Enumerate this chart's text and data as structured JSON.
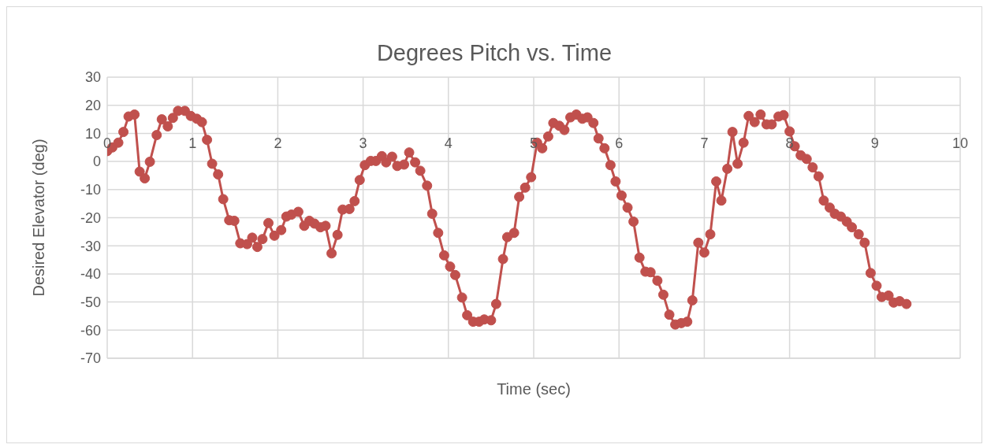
{
  "chart_data": {
    "type": "line",
    "title": "Degrees Pitch vs. Time",
    "xlabel": "Time (sec)",
    "ylabel": "Desired Elevator (deg)",
    "x": [
      0,
      0.06,
      0.13,
      0.19,
      0.25,
      0.32,
      0.38,
      0.44,
      0.5,
      0.58,
      0.64,
      0.71,
      0.77,
      0.83,
      0.91,
      0.98,
      1.05,
      1.11,
      1.17,
      1.23,
      1.3,
      1.36,
      1.43,
      1.49,
      1.56,
      1.64,
      1.7,
      1.76,
      1.82,
      1.89,
      1.96,
      2.04,
      2.1,
      2.16,
      2.24,
      2.31,
      2.37,
      2.43,
      2.5,
      2.56,
      2.63,
      2.7,
      2.76,
      2.84,
      2.9,
      2.96,
      3.02,
      3.09,
      3.15,
      3.22,
      3.27,
      3.34,
      3.4,
      3.48,
      3.54,
      3.61,
      3.67,
      3.75,
      3.81,
      3.88,
      3.95,
      4.02,
      4.08,
      4.16,
      4.22,
      4.29,
      4.36,
      4.42,
      4.5,
      4.56,
      4.64,
      4.69,
      4.77,
      4.83,
      4.9,
      4.97,
      5.04,
      5.1,
      5.17,
      5.23,
      5.3,
      5.36,
      5.43,
      5.5,
      5.57,
      5.63,
      5.7,
      5.76,
      5.83,
      5.9,
      5.96,
      6.03,
      6.1,
      6.17,
      6.24,
      6.31,
      6.37,
      6.45,
      6.52,
      6.59,
      6.66,
      6.73,
      6.8,
      6.86,
      6.93,
      7,
      7.07,
      7.14,
      7.2,
      7.27,
      7.33,
      7.39,
      7.46,
      7.52,
      7.59,
      7.66,
      7.73,
      7.79,
      7.87,
      7.93,
      8,
      8.06,
      8.13,
      8.2,
      8.27,
      8.34,
      8.4,
      8.47,
      8.53,
      8.6,
      8.67,
      8.73,
      8.81,
      8.88,
      8.95,
      9.02,
      9.08,
      9.16,
      9.22,
      9.29,
      9.37
    ],
    "series": [
      {
        "color": "#c0504d",
        "values": [
          3.7,
          5,
          6.7,
          10.5,
          16,
          16.7,
          -3.6,
          -6,
          -0.1,
          9.4,
          15,
          12.5,
          15.5,
          18,
          18,
          16.2,
          15.2,
          14,
          7.7,
          -0.8,
          -4.6,
          -13.4,
          -20.9,
          -21.1,
          -29.1,
          -29.4,
          -27.1,
          -30.4,
          -27.6,
          -21.9,
          -26.4,
          -24.4,
          -19.6,
          -18.9,
          -17.9,
          -22.9,
          -21.1,
          -22.1,
          -23.4,
          -22.9,
          -32.7,
          -26.1,
          -17.1,
          -16.9,
          -14.1,
          -6.6,
          -1.3,
          0.2,
          0.2,
          1.9,
          -0.3,
          1.7,
          -1.6,
          -1.1,
          3.2,
          -0.3,
          -3.3,
          -8.6,
          -18.6,
          -25.4,
          -33.4,
          -37.4,
          -40.4,
          -48.4,
          -54.7,
          -57,
          -57,
          -56.2,
          -56.5,
          -50.7,
          -34.7,
          -26.9,
          -25.4,
          -12.6,
          -9.3,
          -5.6,
          6.7,
          4.7,
          8.9,
          13.7,
          12.7,
          11.2,
          15.7,
          16.7,
          15.2,
          15.7,
          13.7,
          8.2,
          4.7,
          -1.3,
          -7.1,
          -12.1,
          -16.4,
          -21.4,
          -34.2,
          -39.2,
          -39.4,
          -42.4,
          -47.4,
          -54.5,
          -58,
          -57.5,
          -57,
          -49.4,
          -28.9,
          -32.4,
          -25.9,
          -7.1,
          -13.9,
          -2.6,
          10.5,
          -0.8,
          6.7,
          16.2,
          14,
          16.7,
          13.2,
          13.2,
          16,
          16.5,
          10.7,
          5.4,
          2.2,
          0.9,
          -2.1,
          -5.3,
          -13.9,
          -16.4,
          -18.6,
          -19.6,
          -21.4,
          -23.4,
          -25.9,
          -28.9,
          -39.7,
          -44.2,
          -48.2,
          -47.7,
          -50.2,
          -49.7,
          -50.7
        ]
      }
    ],
    "xlim": [
      0,
      10
    ],
    "xticks": [
      0,
      1,
      2,
      3,
      4,
      5,
      6,
      7,
      8,
      9,
      10
    ],
    "ylim": [
      -70,
      30
    ],
    "yticks": [
      -70,
      -60,
      -50,
      -40,
      -30,
      -20,
      -10,
      0,
      10,
      20,
      30
    ],
    "grid": true,
    "marker": "circle",
    "line_style": "solid"
  }
}
